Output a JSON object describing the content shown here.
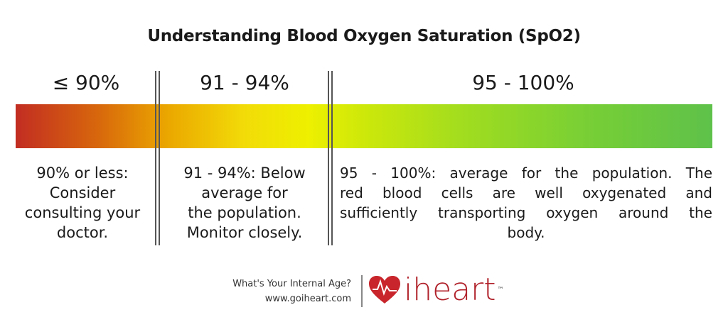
{
  "title": "Understanding Blood Oxygen Saturation (SpO2)",
  "ranges": [
    {
      "label": "≤ 90%",
      "lines": [
        "90% or less:",
        "Consider",
        "consulting your",
        "doctor."
      ],
      "color": "#c22d22"
    },
    {
      "label": "91 - 94%",
      "lines": [
        "91 - 94%: Below",
        "average for",
        "the population.",
        "Monitor closely."
      ],
      "color": "#f2dc08"
    },
    {
      "label": "95 - 100%",
      "lines": [
        "95 - 100%: average for the population. The",
        "red blood cells are well oxygenated and",
        "sufficiently transporting oxygen around the",
        "body."
      ],
      "color": "#5ec14a"
    }
  ],
  "footer": {
    "tagline": "What's Your Internal Age?",
    "url": "www.goiheart.com",
    "brand": "iheart",
    "trademark": "™",
    "brand_color": "#b0212a",
    "logo_icon": "heart-pulse-icon"
  }
}
